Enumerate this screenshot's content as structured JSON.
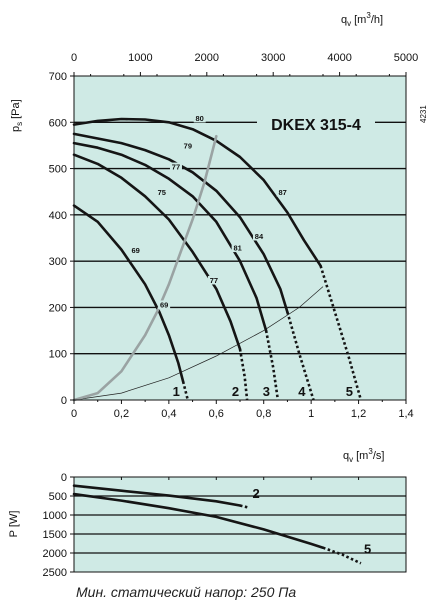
{
  "chart_data": [
    {
      "type": "line",
      "model": "DKEX 315-4",
      "side_code": "4231",
      "xlabel": "q",
      "xlabel_sub": "v",
      "xlabel_unit_pre": "[m",
      "xlabel_unit_sup": "3",
      "xlabel_unit_post": "/s]",
      "x2label": "q",
      "x2label_sub": "v",
      "x2label_unit_pre": "[m",
      "x2label_unit_sup": "3",
      "x2label_unit_post": "/h]",
      "ylabel": "p",
      "ylabel_sub": "s",
      "ylabel_unit": "[Pa]",
      "xlim": [
        0,
        1.4
      ],
      "ylim": [
        0,
        700
      ],
      "x2lim": [
        0,
        5000
      ],
      "x_ticks": [
        "0",
        "0,2",
        "0,4",
        "0,6",
        "0,8",
        "1",
        "1,2",
        "1,4"
      ],
      "x_tick_values": [
        0,
        0.2,
        0.4,
        0.6,
        0.8,
        1.0,
        1.2,
        1.4
      ],
      "x2_ticks": [
        "0",
        "1000",
        "2000",
        "3000",
        "4000",
        "5000"
      ],
      "x2_tick_values": [
        0,
        1000,
        2000,
        3000,
        4000,
        5000
      ],
      "y_ticks": [
        "0",
        "100",
        "200",
        "300",
        "400",
        "500",
        "600",
        "700"
      ],
      "y_tick_values": [
        0,
        100,
        200,
        300,
        400,
        500,
        600,
        700
      ],
      "grid": "horizontal",
      "series": [
        {
          "name": "1",
          "solid": [
            [
              0,
              420
            ],
            [
              0.1,
              385
            ],
            [
              0.2,
              325
            ],
            [
              0.3,
              250
            ],
            [
              0.36,
              190
            ],
            [
              0.4,
              140
            ],
            [
              0.44,
              80
            ],
            [
              0.46,
              40
            ]
          ],
          "dotted": [
            [
              0.46,
              40
            ],
            [
              0.48,
              0
            ]
          ]
        },
        {
          "name": "2",
          "solid": [
            [
              0,
              530
            ],
            [
              0.1,
              510
            ],
            [
              0.2,
              480
            ],
            [
              0.3,
              440
            ],
            [
              0.4,
              390
            ],
            [
              0.5,
              320
            ],
            [
              0.6,
              240
            ],
            [
              0.66,
              170
            ],
            [
              0.7,
              110
            ]
          ],
          "dotted": [
            [
              0.7,
              110
            ],
            [
              0.72,
              50
            ],
            [
              0.73,
              0
            ]
          ]
        },
        {
          "name": "3",
          "solid": [
            [
              0,
              555
            ],
            [
              0.1,
              545
            ],
            [
              0.2,
              530
            ],
            [
              0.3,
              508
            ],
            [
              0.4,
              478
            ],
            [
              0.5,
              440
            ],
            [
              0.6,
              385
            ],
            [
              0.7,
              300
            ],
            [
              0.77,
              220
            ],
            [
              0.81,
              150
            ]
          ],
          "dotted": [
            [
              0.81,
              150
            ],
            [
              0.84,
              70
            ],
            [
              0.86,
              0
            ]
          ]
        },
        {
          "name": "4",
          "solid": [
            [
              0,
              575
            ],
            [
              0.1,
              565
            ],
            [
              0.2,
              555
            ],
            [
              0.3,
              540
            ],
            [
              0.4,
              520
            ],
            [
              0.5,
              492
            ],
            [
              0.6,
              452
            ],
            [
              0.7,
              395
            ],
            [
              0.8,
              315
            ],
            [
              0.87,
              240
            ],
            [
              0.9,
              190
            ]
          ],
          "dotted": [
            [
              0.9,
              190
            ],
            [
              0.95,
              100
            ],
            [
              1.01,
              0
            ]
          ]
        },
        {
          "name": "5",
          "solid": [
            [
              0,
              595
            ],
            [
              0.1,
              603
            ],
            [
              0.2,
              607
            ],
            [
              0.3,
              606
            ],
            [
              0.4,
              600
            ],
            [
              0.5,
              585
            ],
            [
              0.6,
              560
            ],
            [
              0.7,
              525
            ],
            [
              0.8,
              475
            ],
            [
              0.9,
              405
            ],
            [
              0.97,
              345
            ],
            [
              1.04,
              290
            ]
          ],
          "dotted": [
            [
              1.04,
              290
            ],
            [
              1.1,
              190
            ],
            [
              1.16,
              90
            ],
            [
              1.21,
              0
            ]
          ]
        }
      ],
      "system_curve_light": [
        [
          0,
          0
        ],
        [
          0.1,
          15
        ],
        [
          0.2,
          62
        ],
        [
          0.3,
          140
        ],
        [
          0.35,
          190
        ],
        [
          0.4,
          250
        ],
        [
          0.45,
          320
        ],
        [
          0.5,
          390
        ],
        [
          0.55,
          470
        ],
        [
          0.6,
          570
        ]
      ],
      "system_curve_thin": [
        [
          0,
          0
        ],
        [
          0.2,
          15
        ],
        [
          0.4,
          48
        ],
        [
          0.6,
          95
        ],
        [
          0.8,
          150
        ],
        [
          0.95,
          200
        ],
        [
          1.05,
          245
        ]
      ],
      "efficiency_labels": [
        {
          "text": "80",
          "x": 0.53,
          "y": 605
        },
        {
          "text": "79",
          "x": 0.48,
          "y": 545
        },
        {
          "text": "77",
          "x": 0.43,
          "y": 500
        },
        {
          "text": "75",
          "x": 0.37,
          "y": 445
        },
        {
          "text": "87",
          "x": 0.88,
          "y": 445
        },
        {
          "text": "84",
          "x": 0.78,
          "y": 350
        },
        {
          "text": "81",
          "x": 0.69,
          "y": 325
        },
        {
          "text": "77",
          "x": 0.59,
          "y": 255
        },
        {
          "text": "69",
          "x": 0.26,
          "y": 320
        },
        {
          "text": "69",
          "x": 0.38,
          "y": 202
        }
      ]
    },
    {
      "type": "line",
      "ylabel": "P",
      "ylabel_unit": "[W]",
      "xlim": [
        0,
        1.4
      ],
      "ylim": [
        0,
        2500
      ],
      "y_inverted": true,
      "y_ticks": [
        "0",
        "500",
        "1000",
        "1500",
        "2000",
        "2500"
      ],
      "y_tick_values": [
        0,
        500,
        1000,
        1500,
        2000,
        2500
      ],
      "grid": "horizontal",
      "series": [
        {
          "name": "2",
          "solid": [
            [
              0,
              230
            ],
            [
              0.2,
              360
            ],
            [
              0.4,
              490
            ],
            [
              0.6,
              640
            ],
            [
              0.7,
              750
            ]
          ],
          "dotted": [
            [
              0.7,
              750
            ],
            [
              0.74,
              810
            ]
          ]
        },
        {
          "name": "5",
          "solid": [
            [
              0,
              450
            ],
            [
              0.2,
              620
            ],
            [
              0.4,
              820
            ],
            [
              0.6,
              1050
            ],
            [
              0.8,
              1380
            ],
            [
              1.0,
              1760
            ],
            [
              1.05,
              1860
            ]
          ],
          "dotted": [
            [
              1.05,
              1860
            ],
            [
              1.13,
              2040
            ],
            [
              1.21,
              2270
            ]
          ]
        }
      ]
    }
  ],
  "caption": "Мин. статический напор: 250 Па"
}
